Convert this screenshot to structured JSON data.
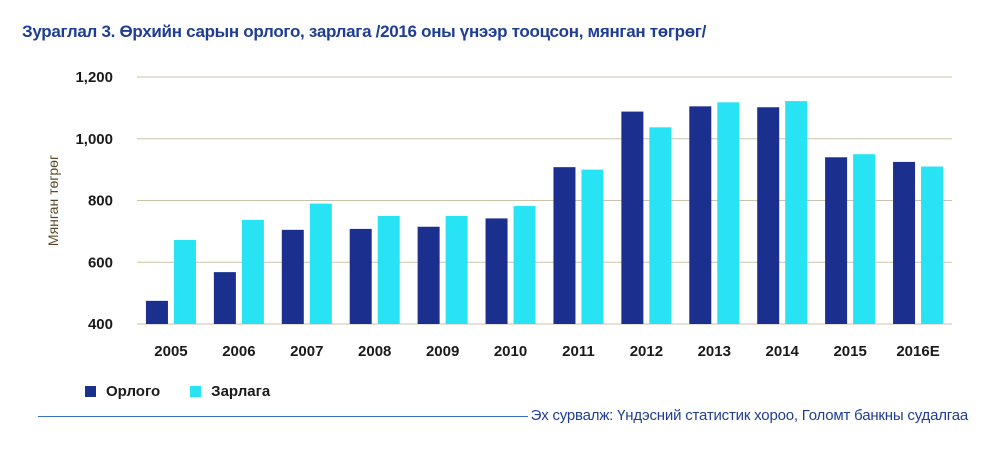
{
  "title": "Зураглал 3. Өрхийн сарын орлого, зарлага /2016 оны үнээр тооцсон, мянган төгрөг/",
  "source": "Эх сурвалж: Үндэсний статистик хороо, Голомт банкны судалгаа",
  "colors": {
    "income": "#1b2f8f",
    "expense": "#27e3f4",
    "grid": "#c9c3a8",
    "title": "#1f3e93"
  },
  "chart_data": {
    "type": "bar",
    "title": "Зураглал 3. Өрхийн сарын орлого, зарлага /2016 оны үнээр тооцсон, мянган төгрөг/",
    "xlabel": "",
    "ylabel": "Мянган төгрөг",
    "ylim": [
      400,
      1200
    ],
    "yticks": [
      400,
      600,
      800,
      1000,
      1200
    ],
    "ytick_labels": [
      "400",
      "600",
      "800",
      "1,000",
      "1,200"
    ],
    "grid": true,
    "legend_position": "bottom-left",
    "categories": [
      "2005",
      "2006",
      "2007",
      "2008",
      "2009",
      "2010",
      "2011",
      "2012",
      "2013",
      "2014",
      "2015",
      "2016E"
    ],
    "series": [
      {
        "name": "Орлого",
        "values": [
          475,
          568,
          705,
          708,
          715,
          742,
          908,
          1088,
          1105,
          1102,
          940,
          925
        ]
      },
      {
        "name": "Зарлага",
        "values": [
          672,
          737,
          790,
          750,
          750,
          782,
          900,
          1037,
          1118,
          1122,
          950,
          910
        ]
      }
    ]
  }
}
